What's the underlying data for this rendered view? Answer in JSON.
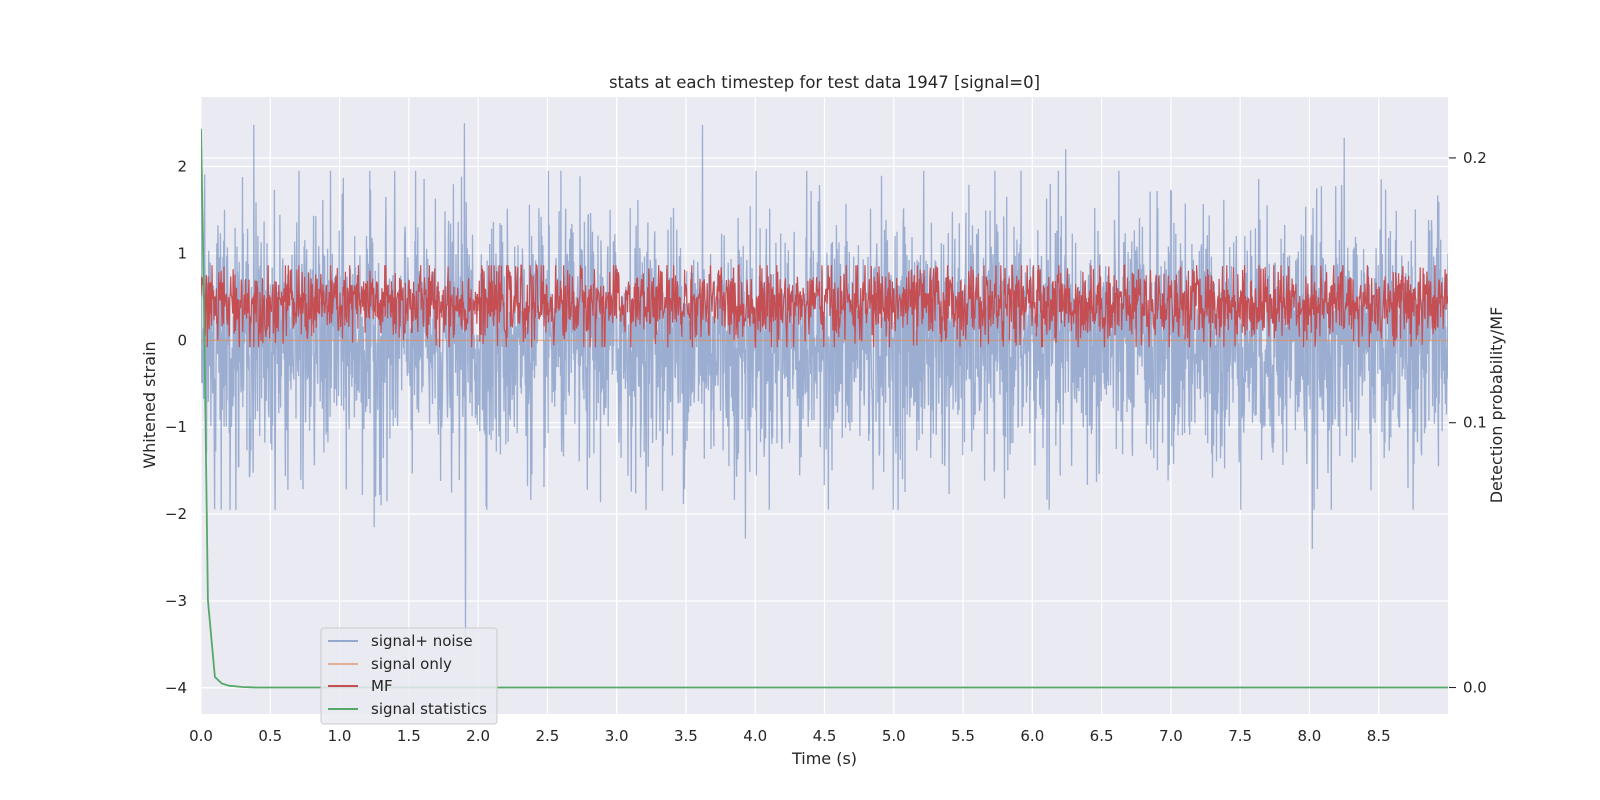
{
  "chart_data": {
    "type": "line",
    "title": "stats at each timestep for test data 1947 [signal=0]",
    "xlabel": "Time (s)",
    "ylabel": "Whitened strain",
    "y2label": "Detection probability/MF",
    "xlim": [
      0,
      9.0
    ],
    "ylim": [
      -4.3,
      2.8
    ],
    "y2lim": [
      -0.01,
      0.223
    ],
    "xticks": [
      0.0,
      0.5,
      1.0,
      1.5,
      2.0,
      2.5,
      3.0,
      3.5,
      4.0,
      4.5,
      5.0,
      5.5,
      6.0,
      6.5,
      7.0,
      7.5,
      8.0,
      8.5
    ],
    "xtick_labels": [
      "0.0",
      "0.5",
      "1.0",
      "1.5",
      "2.0",
      "2.5",
      "3.0",
      "3.5",
      "4.0",
      "4.5",
      "5.0",
      "5.5",
      "6.0",
      "6.5",
      "7.0",
      "7.5",
      "8.0",
      "8.5"
    ],
    "yticks": [
      -4,
      -3,
      -2,
      -1,
      0,
      1,
      2
    ],
    "ytick_labels": [
      "−4",
      "−3",
      "−2",
      "−1",
      "0",
      "1",
      "2"
    ],
    "y2ticks": [
      0.0,
      0.1,
      0.2
    ],
    "y2tick_labels": [
      "0.0",
      "0.1",
      "0.2"
    ],
    "grid": true,
    "legend_position": "lower-left",
    "series": [
      {
        "name": "signal+ noise",
        "axis": "left",
        "color": "#4c72b0",
        "alpha": 0.5,
        "description": "dense whitened noise, approx N(0, 0.75^2) over 0-9 s",
        "x": [
          0.0,
          0.38,
          1.25,
          1.9,
          1.91,
          3.62,
          3.93,
          6.24,
          8.02,
          8.25,
          9.0
        ],
        "values": [
          0.0,
          2.48,
          -2.15,
          2.5,
          -3.45,
          2.48,
          -2.28,
          2.2,
          -2.4,
          2.33,
          1.0
        ]
      },
      {
        "name": "signal only",
        "axis": "left",
        "color": "#dd8452",
        "x": [
          0.0,
          9.0
        ],
        "values": [
          0.0,
          0.0
        ]
      },
      {
        "name": "MF",
        "axis": "right",
        "color": "#c44e52",
        "description": "matched filter output, approx 0.128-0.160 on right axis",
        "x": [
          0.0,
          9.0
        ],
        "values": [
          0.145,
          0.145
        ]
      },
      {
        "name": "signal statistics",
        "axis": "right",
        "color": "#55a868",
        "x": [
          0.0,
          0.02,
          0.05,
          0.1,
          0.15,
          0.2,
          0.3,
          0.4,
          1.0,
          9.0
        ],
        "values": [
          0.211,
          0.15,
          0.033,
          0.004,
          0.0015,
          0.0007,
          0.0002,
          0.0,
          0.0,
          0.0
        ]
      }
    ]
  }
}
